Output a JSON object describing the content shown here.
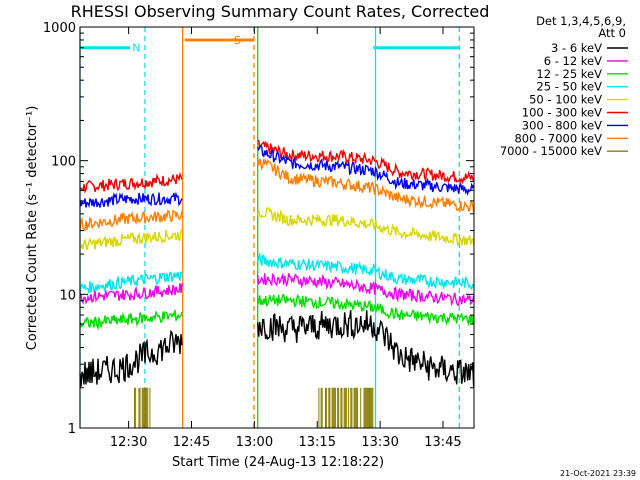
{
  "chart_data": {
    "type": "line",
    "title": "RHESSI Observing Summary Count Rates, Corrected",
    "xlabel": "Start Time (24-Aug-13 12:18:22)",
    "ylabel": "Corrected Count Rate (s⁻¹ detector⁻¹)",
    "y_scale": "log",
    "ylim": [
      1,
      1000
    ],
    "xlim_minutes_since_start": [
      0,
      94
    ],
    "x_ticks": [
      {
        "label": "12:30",
        "t": 11.6
      },
      {
        "label": "12:45",
        "t": 26.6
      },
      {
        "label": "13:00",
        "t": 41.6
      },
      {
        "label": "13:15",
        "t": 56.6
      },
      {
        "label": "13:30",
        "t": 71.6
      },
      {
        "label": "13:45",
        "t": 86.6
      }
    ],
    "y_ticks": [
      {
        "label": "1",
        "v": 1
      },
      {
        "label": "10",
        "v": 10
      },
      {
        "label": "100",
        "v": 100
      },
      {
        "label": "1000",
        "v": 1000
      }
    ],
    "detector_info": [
      "Det 1,3,4,5,6,9,",
      "Att 0"
    ],
    "legend": [
      {
        "label": "3 - 6 keV",
        "color": "#000000"
      },
      {
        "label": "6 - 12 keV",
        "color": "#ee00ee"
      },
      {
        "label": "12 - 25 keV",
        "color": "#00dd00"
      },
      {
        "label": "25 - 50 keV",
        "color": "#00e5ee"
      },
      {
        "label": "50 - 100 keV",
        "color": "#d8d800"
      },
      {
        "label": "100 - 300 keV",
        "color": "#ee0000"
      },
      {
        "label": "300 - 800 keV",
        "color": "#0000ee"
      },
      {
        "label": "800 - 7000 keV",
        "color": "#ff8000"
      },
      {
        "label": "7000 - 15000 keV",
        "color": "#8b7d00"
      }
    ],
    "segments": [
      [
        0,
        24.5
      ],
      [
        42.4,
        94
      ]
    ],
    "series": [
      {
        "name": "100 - 300 keV",
        "color": "#ee0000",
        "points": [
          [
            0,
            63
          ],
          [
            12,
            68
          ],
          [
            24.5,
            73
          ]
        ],
        "points2": [
          [
            42.4,
            130
          ],
          [
            50,
            110
          ],
          [
            62,
            108
          ],
          [
            70,
            100
          ],
          [
            76,
            82
          ],
          [
            94,
            74
          ]
        ]
      },
      {
        "name": "300 - 800 keV",
        "color": "#0000ee",
        "points": [
          [
            0,
            48
          ],
          [
            12,
            52
          ],
          [
            24.5,
            52
          ]
        ],
        "points2": [
          [
            42.4,
            120
          ],
          [
            50,
            96
          ],
          [
            62,
            90
          ],
          [
            70,
            84
          ],
          [
            76,
            68
          ],
          [
            94,
            60
          ]
        ]
      },
      {
        "name": "800 - 7000 keV",
        "color": "#ff8000",
        "points": [
          [
            0,
            33
          ],
          [
            12,
            37
          ],
          [
            24.5,
            39
          ]
        ],
        "points2": [
          [
            42.4,
            100
          ],
          [
            50,
            74
          ],
          [
            62,
            68
          ],
          [
            70,
            62
          ],
          [
            76,
            52
          ],
          [
            94,
            45
          ]
        ]
      },
      {
        "name": "50 - 100 keV",
        "color": "#d8d800",
        "points": [
          [
            0,
            23
          ],
          [
            12,
            26
          ],
          [
            24.5,
            28
          ]
        ],
        "points2": [
          [
            42.4,
            42
          ],
          [
            50,
            36
          ],
          [
            62,
            36
          ],
          [
            70,
            33
          ],
          [
            76,
            29
          ],
          [
            94,
            25
          ]
        ]
      },
      {
        "name": "25 - 50 keV",
        "color": "#00e5ee",
        "points": [
          [
            0,
            11
          ],
          [
            12,
            12.5
          ],
          [
            24.5,
            14
          ]
        ],
        "points2": [
          [
            42.4,
            18
          ],
          [
            50,
            17
          ],
          [
            62,
            16
          ],
          [
            70,
            15
          ],
          [
            76,
            13
          ],
          [
            94,
            12
          ]
        ]
      },
      {
        "name": "6 - 12 keV",
        "color": "#ee00ee",
        "points": [
          [
            0,
            9.5
          ],
          [
            12,
            10
          ],
          [
            24.5,
            11
          ]
        ],
        "points2": [
          [
            42.4,
            13
          ],
          [
            50,
            13
          ],
          [
            62,
            12
          ],
          [
            70,
            11
          ],
          [
            76,
            10
          ],
          [
            94,
            9
          ]
        ]
      },
      {
        "name": "12 - 25 keV",
        "color": "#00dd00",
        "points": [
          [
            0,
            6
          ],
          [
            12,
            6.5
          ],
          [
            24.5,
            7
          ]
        ],
        "points2": [
          [
            42.4,
            9
          ],
          [
            50,
            9
          ],
          [
            62,
            8.5
          ],
          [
            70,
            8
          ],
          [
            76,
            7
          ],
          [
            94,
            6.5
          ]
        ]
      },
      {
        "name": "3 - 6 keV",
        "color": "#000000",
        "points": [
          [
            0,
            2.5
          ],
          [
            10,
            2.8
          ],
          [
            14,
            3.3
          ],
          [
            20,
            4
          ],
          [
            24.5,
            4.5
          ]
        ],
        "points2": [
          [
            42.4,
            6
          ],
          [
            50,
            5.5
          ],
          [
            62,
            6
          ],
          [
            70,
            6
          ],
          [
            76,
            3.5
          ],
          [
            84,
            2.8
          ],
          [
            94,
            2.5
          ]
        ]
      }
    ],
    "attenuator_flags": [
      {
        "label": "N",
        "t_start": 0,
        "t_end": 12,
        "v": 700,
        "color": "#00e5ee"
      },
      {
        "label": "S",
        "t_start": 25,
        "t_end": 41.5,
        "v": 800,
        "color": "#ff8000"
      },
      {
        "label": "",
        "t_start": 70,
        "t_end": 90.5,
        "v": 700,
        "color": "#00e5ee"
      }
    ],
    "interval_markers": [
      {
        "t": 0,
        "color": "#00e5ee",
        "style": "solid"
      },
      {
        "t": 15.5,
        "color": "#00e5ee",
        "style": "dashed"
      },
      {
        "t": 24.5,
        "color": "#ff8000",
        "style": "solid"
      },
      {
        "t": 41.5,
        "color": "#ff8000",
        "style": "dashed"
      },
      {
        "t": 42.4,
        "color": "#00dd00",
        "style": "solid"
      },
      {
        "t": 70.5,
        "color": "#00e5ee",
        "style": "solid"
      },
      {
        "t": 90.5,
        "color": "#00e5ee",
        "style": "dashed"
      }
    ],
    "gamma_bursts": [
      {
        "t_start": 13,
        "t_end": 17,
        "v_low": 1,
        "v_high": 2,
        "color": "#8b7d00"
      },
      {
        "t_start": 57,
        "t_end": 70,
        "v_low": 1,
        "v_high": 2,
        "color": "#8b7d00"
      }
    ],
    "timestamp": "21-Oct-2021 23:39"
  }
}
